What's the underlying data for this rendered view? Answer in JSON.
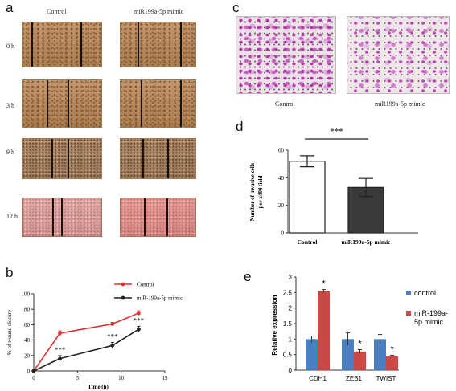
{
  "panels": {
    "a": {
      "letter": "a",
      "columns": [
        "Control",
        "miR199a-5p mimic"
      ],
      "rows": [
        "0 h",
        "3 h",
        "9 h",
        "12 h"
      ]
    },
    "b": {
      "letter": "b"
    },
    "c": {
      "letter": "c",
      "captions": [
        "Control",
        "miR199a-5p mimic"
      ]
    },
    "d": {
      "letter": "d"
    },
    "e": {
      "letter": "e"
    }
  },
  "chart_data": [
    {
      "id": "b",
      "type": "line",
      "ylabel": "% of wound closure",
      "xlabel": "Time (h)",
      "xlim": [
        0,
        15
      ],
      "ylim": [
        0,
        100
      ],
      "xticks": [
        0,
        5,
        10,
        15
      ],
      "yticks": [
        0,
        20,
        40,
        60,
        80,
        100
      ],
      "legend_position": "top-right",
      "series": [
        {
          "name": "Control",
          "color": "#e03030",
          "x": [
            0,
            3,
            9,
            12
          ],
          "y": [
            0,
            49,
            61,
            75
          ],
          "err": [
            0,
            3,
            2,
            3
          ]
        },
        {
          "name": "miR-199a-5p mimic",
          "color": "#222222",
          "x": [
            0,
            3,
            9,
            12
          ],
          "y": [
            0,
            16,
            33,
            54
          ],
          "err": [
            0,
            4,
            4,
            4
          ]
        }
      ],
      "annotations": [
        {
          "x": 3,
          "text": "***"
        },
        {
          "x": 9,
          "text": "***"
        },
        {
          "x": 12,
          "text": "***"
        }
      ]
    },
    {
      "id": "d",
      "type": "bar",
      "ylabel": "Number of invasive cells per x400 field",
      "categories": [
        "Control",
        "miR199a-5p mimic"
      ],
      "values": [
        52,
        33
      ],
      "errors": [
        4,
        6.5
      ],
      "ylim": [
        0,
        60
      ],
      "yticks": [
        0,
        20,
        40,
        60
      ],
      "colors": [
        "#ffffff",
        "#3a3a3a"
      ],
      "significance": "***"
    },
    {
      "id": "e",
      "type": "bar",
      "ylabel": "Relative expression",
      "categories": [
        "CDH1",
        "ZEB1",
        "TWIST"
      ],
      "ylim": [
        0,
        3
      ],
      "yticks": [
        "0",
        "0.5",
        "1",
        "1.5",
        "2",
        "2.5",
        "3"
      ],
      "legend_position": "right",
      "series": [
        {
          "name": "control",
          "color": "#4a7fc1",
          "values": [
            1.0,
            1.0,
            1.0
          ],
          "errors": [
            0.1,
            0.2,
            0.15
          ]
        },
        {
          "name": "miR-199a-5p mimic",
          "color": "#c94a44",
          "values": [
            2.55,
            0.6,
            0.45
          ],
          "errors": [
            0.05,
            0.06,
            0.03
          ]
        }
      ],
      "significance": [
        "*",
        "*",
        "*"
      ]
    }
  ]
}
